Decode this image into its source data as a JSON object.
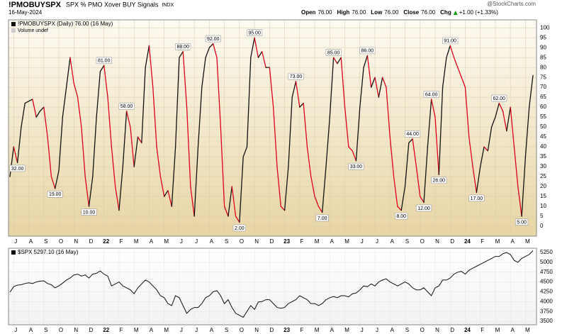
{
  "header": {
    "symbol": "!PMOBUYSPX",
    "description": "SPX % PMO Xover BUY Signals",
    "exchange": "INDX",
    "date": "16-May-2024",
    "watermark": "@StockCharts.com",
    "quote": [
      {
        "label": "Open",
        "value": "76.00"
      },
      {
        "label": "High",
        "value": "76.00"
      },
      {
        "label": "Low",
        "value": "76.00"
      },
      {
        "label": "Close",
        "value": "76.00"
      },
      {
        "label": "Chg",
        "value": "+1.00 (+1.33%)"
      }
    ]
  },
  "chart_data": [
    {
      "type": "line",
      "subtitle": "Volume undef",
      "categories": [
        null,
        "J",
        null,
        null,
        null,
        "A",
        null,
        null,
        null,
        "S",
        null,
        null,
        null,
        "O",
        null,
        null,
        null,
        "N",
        null,
        null,
        null,
        "D",
        null,
        null,
        null,
        "22",
        null,
        null,
        null,
        "F",
        null,
        null,
        null,
        "M",
        null,
        null,
        null,
        "A",
        null,
        null,
        null,
        "M",
        null,
        null,
        null,
        "J",
        null,
        null,
        null,
        "J",
        null,
        null,
        null,
        "A",
        null,
        null,
        null,
        "S",
        null,
        null,
        null,
        "O",
        null,
        null,
        null,
        "N",
        null,
        null,
        null,
        "D",
        null,
        null,
        null,
        "23",
        null,
        null,
        null,
        "F",
        null,
        null,
        null,
        "M",
        null,
        null,
        null,
        "A",
        null,
        null,
        null,
        "M",
        null,
        null,
        null,
        "J",
        null,
        null,
        null,
        "J",
        null,
        null,
        null,
        "A",
        null,
        null,
        null,
        "S",
        null,
        null,
        null,
        "O",
        null,
        null,
        null,
        "N",
        null,
        null,
        null,
        "D",
        null,
        null,
        null,
        "24",
        null,
        null,
        null,
        "F",
        null,
        null,
        null,
        "M",
        null,
        null,
        null,
        "A",
        null,
        null,
        null,
        "M",
        null,
        null
      ],
      "series": [
        {
          "name": "!PMOBUYSPX (Daily) 76.00 (16 May)",
          "up_color": "#111111",
          "down_color": "#e0001b",
          "values": [
            25,
            40,
            32,
            50,
            62,
            63,
            64,
            55,
            58,
            60,
            45,
            25,
            19,
            28,
            55,
            70,
            85,
            72,
            65,
            50,
            25,
            10,
            25,
            55,
            78,
            81,
            65,
            40,
            20,
            8,
            30,
            58,
            50,
            30,
            45,
            42,
            80,
            91,
            70,
            40,
            25,
            15,
            18,
            10,
            40,
            85,
            88,
            60,
            20,
            5,
            40,
            70,
            85,
            90,
            92,
            85,
            50,
            10,
            5,
            20,
            5,
            2,
            35,
            40,
            85,
            95,
            85,
            88,
            80,
            80,
            60,
            30,
            10,
            8,
            30,
            65,
            73,
            60,
            62,
            40,
            25,
            15,
            10,
            7,
            30,
            55,
            85,
            82,
            85,
            60,
            40,
            38,
            33,
            60,
            80,
            86,
            70,
            75,
            65,
            75,
            70,
            45,
            25,
            10,
            8,
            20,
            42,
            44,
            30,
            15,
            12,
            40,
            64,
            55,
            26,
            70,
            85,
            91,
            85,
            80,
            75,
            70,
            45,
            30,
            17,
            30,
            40,
            38,
            50,
            55,
            62,
            58,
            48,
            60,
            40,
            20,
            5,
            35,
            60,
            76
          ],
          "value_labels": [
            null,
            null,
            "32.00",
            null,
            null,
            null,
            null,
            null,
            null,
            null,
            null,
            null,
            "19.00",
            null,
            null,
            null,
            null,
            null,
            null,
            null,
            null,
            "10.00",
            null,
            null,
            null,
            "81.00",
            null,
            null,
            null,
            null,
            null,
            "58.00",
            null,
            null,
            null,
            null,
            null,
            null,
            null,
            null,
            null,
            null,
            null,
            null,
            null,
            null,
            "88.00",
            null,
            null,
            null,
            null,
            null,
            null,
            null,
            "92.00",
            null,
            null,
            null,
            null,
            null,
            null,
            "2.00",
            null,
            null,
            null,
            "95.00",
            null,
            null,
            null,
            null,
            null,
            null,
            null,
            null,
            null,
            null,
            "73.00",
            null,
            null,
            null,
            null,
            null,
            null,
            "7.00",
            null,
            null,
            "85.00",
            null,
            null,
            null,
            null,
            null,
            "33.00",
            null,
            null,
            "86.00",
            null,
            null,
            null,
            null,
            null,
            null,
            null,
            null,
            "8.00",
            null,
            null,
            "44.00",
            null,
            null,
            "12.00",
            null,
            "64.00",
            null,
            "26.00",
            null,
            null,
            "91.00",
            null,
            null,
            null,
            null,
            null,
            null,
            "17.00",
            null,
            null,
            null,
            null,
            null,
            "62.00",
            null,
            null,
            null,
            null,
            null,
            "5.00",
            null,
            null,
            null
          ]
        }
      ],
      "ylim": [
        -5,
        104
      ],
      "yticks": [
        0,
        5,
        10,
        15,
        20,
        25,
        30,
        35,
        40,
        45,
        50,
        55,
        60,
        65,
        70,
        75,
        80,
        85,
        90,
        95,
        100
      ],
      "grid": true
    },
    {
      "type": "line",
      "categories": [
        null,
        "J",
        null,
        null,
        null,
        "A",
        null,
        null,
        null,
        "S",
        null,
        null,
        null,
        "O",
        null,
        null,
        null,
        "N",
        null,
        null,
        null,
        "D",
        null,
        null,
        null,
        "22",
        null,
        null,
        null,
        "F",
        null,
        null,
        null,
        "M",
        null,
        null,
        null,
        "A",
        null,
        null,
        null,
        "M",
        null,
        null,
        null,
        "J",
        null,
        null,
        null,
        "J",
        null,
        null,
        null,
        "A",
        null,
        null,
        null,
        "S",
        null,
        null,
        null,
        "O",
        null,
        null,
        null,
        "N",
        null,
        null,
        null,
        "D",
        null,
        null,
        null,
        "23",
        null,
        null,
        null,
        "F",
        null,
        null,
        null,
        "M",
        null,
        null,
        null,
        "A",
        null,
        null,
        null,
        "M",
        null,
        null,
        null,
        "J",
        null,
        null,
        null,
        "J",
        null,
        null,
        null,
        "A",
        null,
        null,
        null,
        "S",
        null,
        null,
        null,
        "O",
        null,
        null,
        null,
        "N",
        null,
        null,
        null,
        "D",
        null,
        null,
        null,
        "24",
        null,
        null,
        null,
        "F",
        null,
        null,
        null,
        "M",
        null,
        null,
        null,
        "A",
        null,
        null,
        null,
        "M",
        null,
        null
      ],
      "series": [
        {
          "name": "$SPX 5297.10 (16 May)",
          "color": "#111111",
          "values": [
            4240,
            4380,
            4420,
            4430,
            4460,
            4480,
            4460,
            4500,
            4520,
            4530,
            4460,
            4430,
            4350,
            4400,
            4470,
            4550,
            4600,
            4680,
            4700,
            4650,
            4680,
            4600,
            4700,
            4720,
            4780,
            4700,
            4650,
            4400,
            4450,
            4500,
            4400,
            4350,
            4300,
            4200,
            4350,
            4450,
            4550,
            4500,
            4400,
            4300,
            4150,
            4100,
            3950,
            3900,
            4150,
            4100,
            3900,
            3700,
            3800,
            3850,
            3850,
            3950,
            4100,
            4150,
            4250,
            4280,
            4150,
            3950,
            4050,
            3850,
            3700,
            3650,
            3600,
            3750,
            3900,
            3800,
            3990,
            4000,
            4050,
            4050,
            3950,
            3850,
            3830,
            3850,
            3950,
            4000,
            4050,
            4150,
            4100,
            4050,
            3950,
            3950,
            3900,
            3950,
            4050,
            4100,
            4130,
            4100,
            4150,
            4150,
            4120,
            4200,
            4220,
            4300,
            4400,
            4380,
            4450,
            4400,
            4500,
            4550,
            4580,
            4500,
            4450,
            4400,
            4450,
            4500,
            4450,
            4350,
            4300,
            4300,
            4350,
            4250,
            4150,
            4350,
            4400,
            4550,
            4550,
            4600,
            4700,
            4750,
            4770,
            4700,
            4800,
            4850,
            4900,
            4950,
            5000,
            5050,
            5100,
            5150,
            5150,
            5220,
            5250,
            5200,
            5050,
            5000,
            5100,
            5150,
            5200,
            5297.1
          ]
        }
      ],
      "ylim": [
        3410,
        5360
      ],
      "yticks": [
        3500,
        3750,
        4000,
        4250,
        4500,
        4750,
        5000,
        5250
      ],
      "grid": true
    }
  ]
}
